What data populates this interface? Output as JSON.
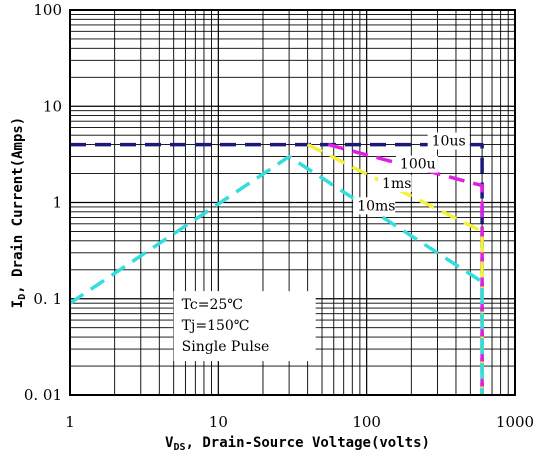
{
  "chart_data": {
    "type": "line",
    "title": "",
    "x_scale": "log",
    "y_scale": "log",
    "xlim": [
      1,
      1000
    ],
    "ylim": [
      0.01,
      100
    ],
    "grid": true,
    "x_ticks": [
      "1",
      "10",
      "100",
      "1000"
    ],
    "y_ticks": [
      "100",
      "10",
      "1",
      "0. 1",
      "0. 01"
    ],
    "xlabel": {
      "main": "V",
      "sub": "DS",
      "rest": ",  Drain-Source Voltage(volts)"
    },
    "ylabel": {
      "main": "I",
      "sub": "D",
      "rest": ",  Drain Current(Amps)"
    },
    "info_box": [
      "Tc=25℃",
      "Tj=150℃",
      "Single Pulse"
    ],
    "series": [
      {
        "name": "10us",
        "color": "#1a1a7a",
        "points": [
          [
            1,
            4
          ],
          [
            600,
            4
          ],
          [
            600,
            0.01
          ]
        ]
      },
      {
        "name": "100u",
        "color": "#e020e0",
        "points": [
          [
            55,
            4
          ],
          [
            600,
            1.5
          ],
          [
            600,
            0.01
          ]
        ]
      },
      {
        "name": "1ms",
        "color": "#f2f23a",
        "points": [
          [
            40,
            4
          ],
          [
            600,
            0.5
          ],
          [
            600,
            0.01
          ]
        ]
      },
      {
        "name": "10ms",
        "color": "#33dddd",
        "points": [
          [
            1,
            0.09
          ],
          [
            30,
            3.0
          ],
          [
            600,
            0.15
          ],
          [
            600,
            0.01
          ]
        ]
      }
    ],
    "annotations": [
      {
        "text": "10us",
        "x": 270,
        "y": 4
      },
      {
        "text": "100u",
        "x": 165,
        "y": 2.3
      },
      {
        "text": "1ms",
        "x": 125,
        "y": 1.45
      },
      {
        "text": "10ms",
        "x": 85,
        "y": 0.85
      }
    ]
  }
}
